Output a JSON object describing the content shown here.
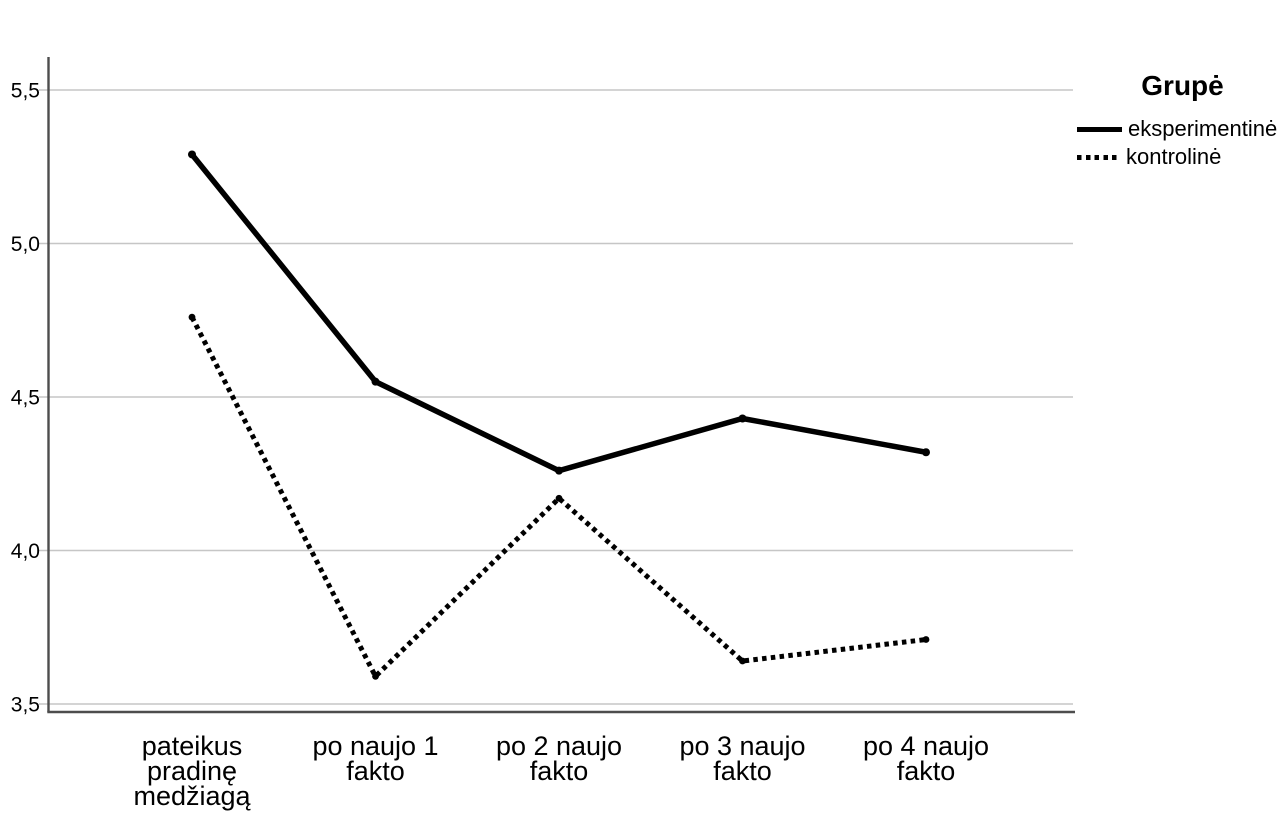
{
  "chart_data": {
    "type": "line",
    "title": "",
    "xlabel": "",
    "ylabel": "",
    "grid": true,
    "ylim": [
      3.47,
      5.61
    ],
    "y_ticks": [
      {
        "value": 5.5,
        "label": "5,5"
      },
      {
        "value": 5.0,
        "label": "5,0"
      },
      {
        "value": 4.5,
        "label": "4,5"
      },
      {
        "value": 4.0,
        "label": "4,0"
      },
      {
        "value": 3.5,
        "label": "3,5"
      }
    ],
    "categories": [
      [
        "pateikus",
        "pradinę",
        "medžiagą"
      ],
      [
        "po naujo 1",
        "fakto"
      ],
      [
        "po 2 naujo",
        "fakto"
      ],
      [
        "po 3 naujo",
        "fakto"
      ],
      [
        "po 4 naujo",
        "fakto"
      ]
    ],
    "series": [
      {
        "name": "eksperimentinė",
        "line_style": "solid",
        "values": [
          5.29,
          4.55,
          4.26,
          4.43,
          4.32
        ]
      },
      {
        "name": "kontrolinė",
        "line_style": "dotted",
        "values": [
          4.76,
          3.59,
          4.17,
          3.64,
          3.71
        ]
      }
    ],
    "legend": {
      "title": "Grupė",
      "position": "top-right"
    },
    "colors": {
      "series": "#000000",
      "grid": "#c6c6c6",
      "axis": "#4d4d4d",
      "text": "#000000",
      "background": "#ffffff"
    }
  }
}
